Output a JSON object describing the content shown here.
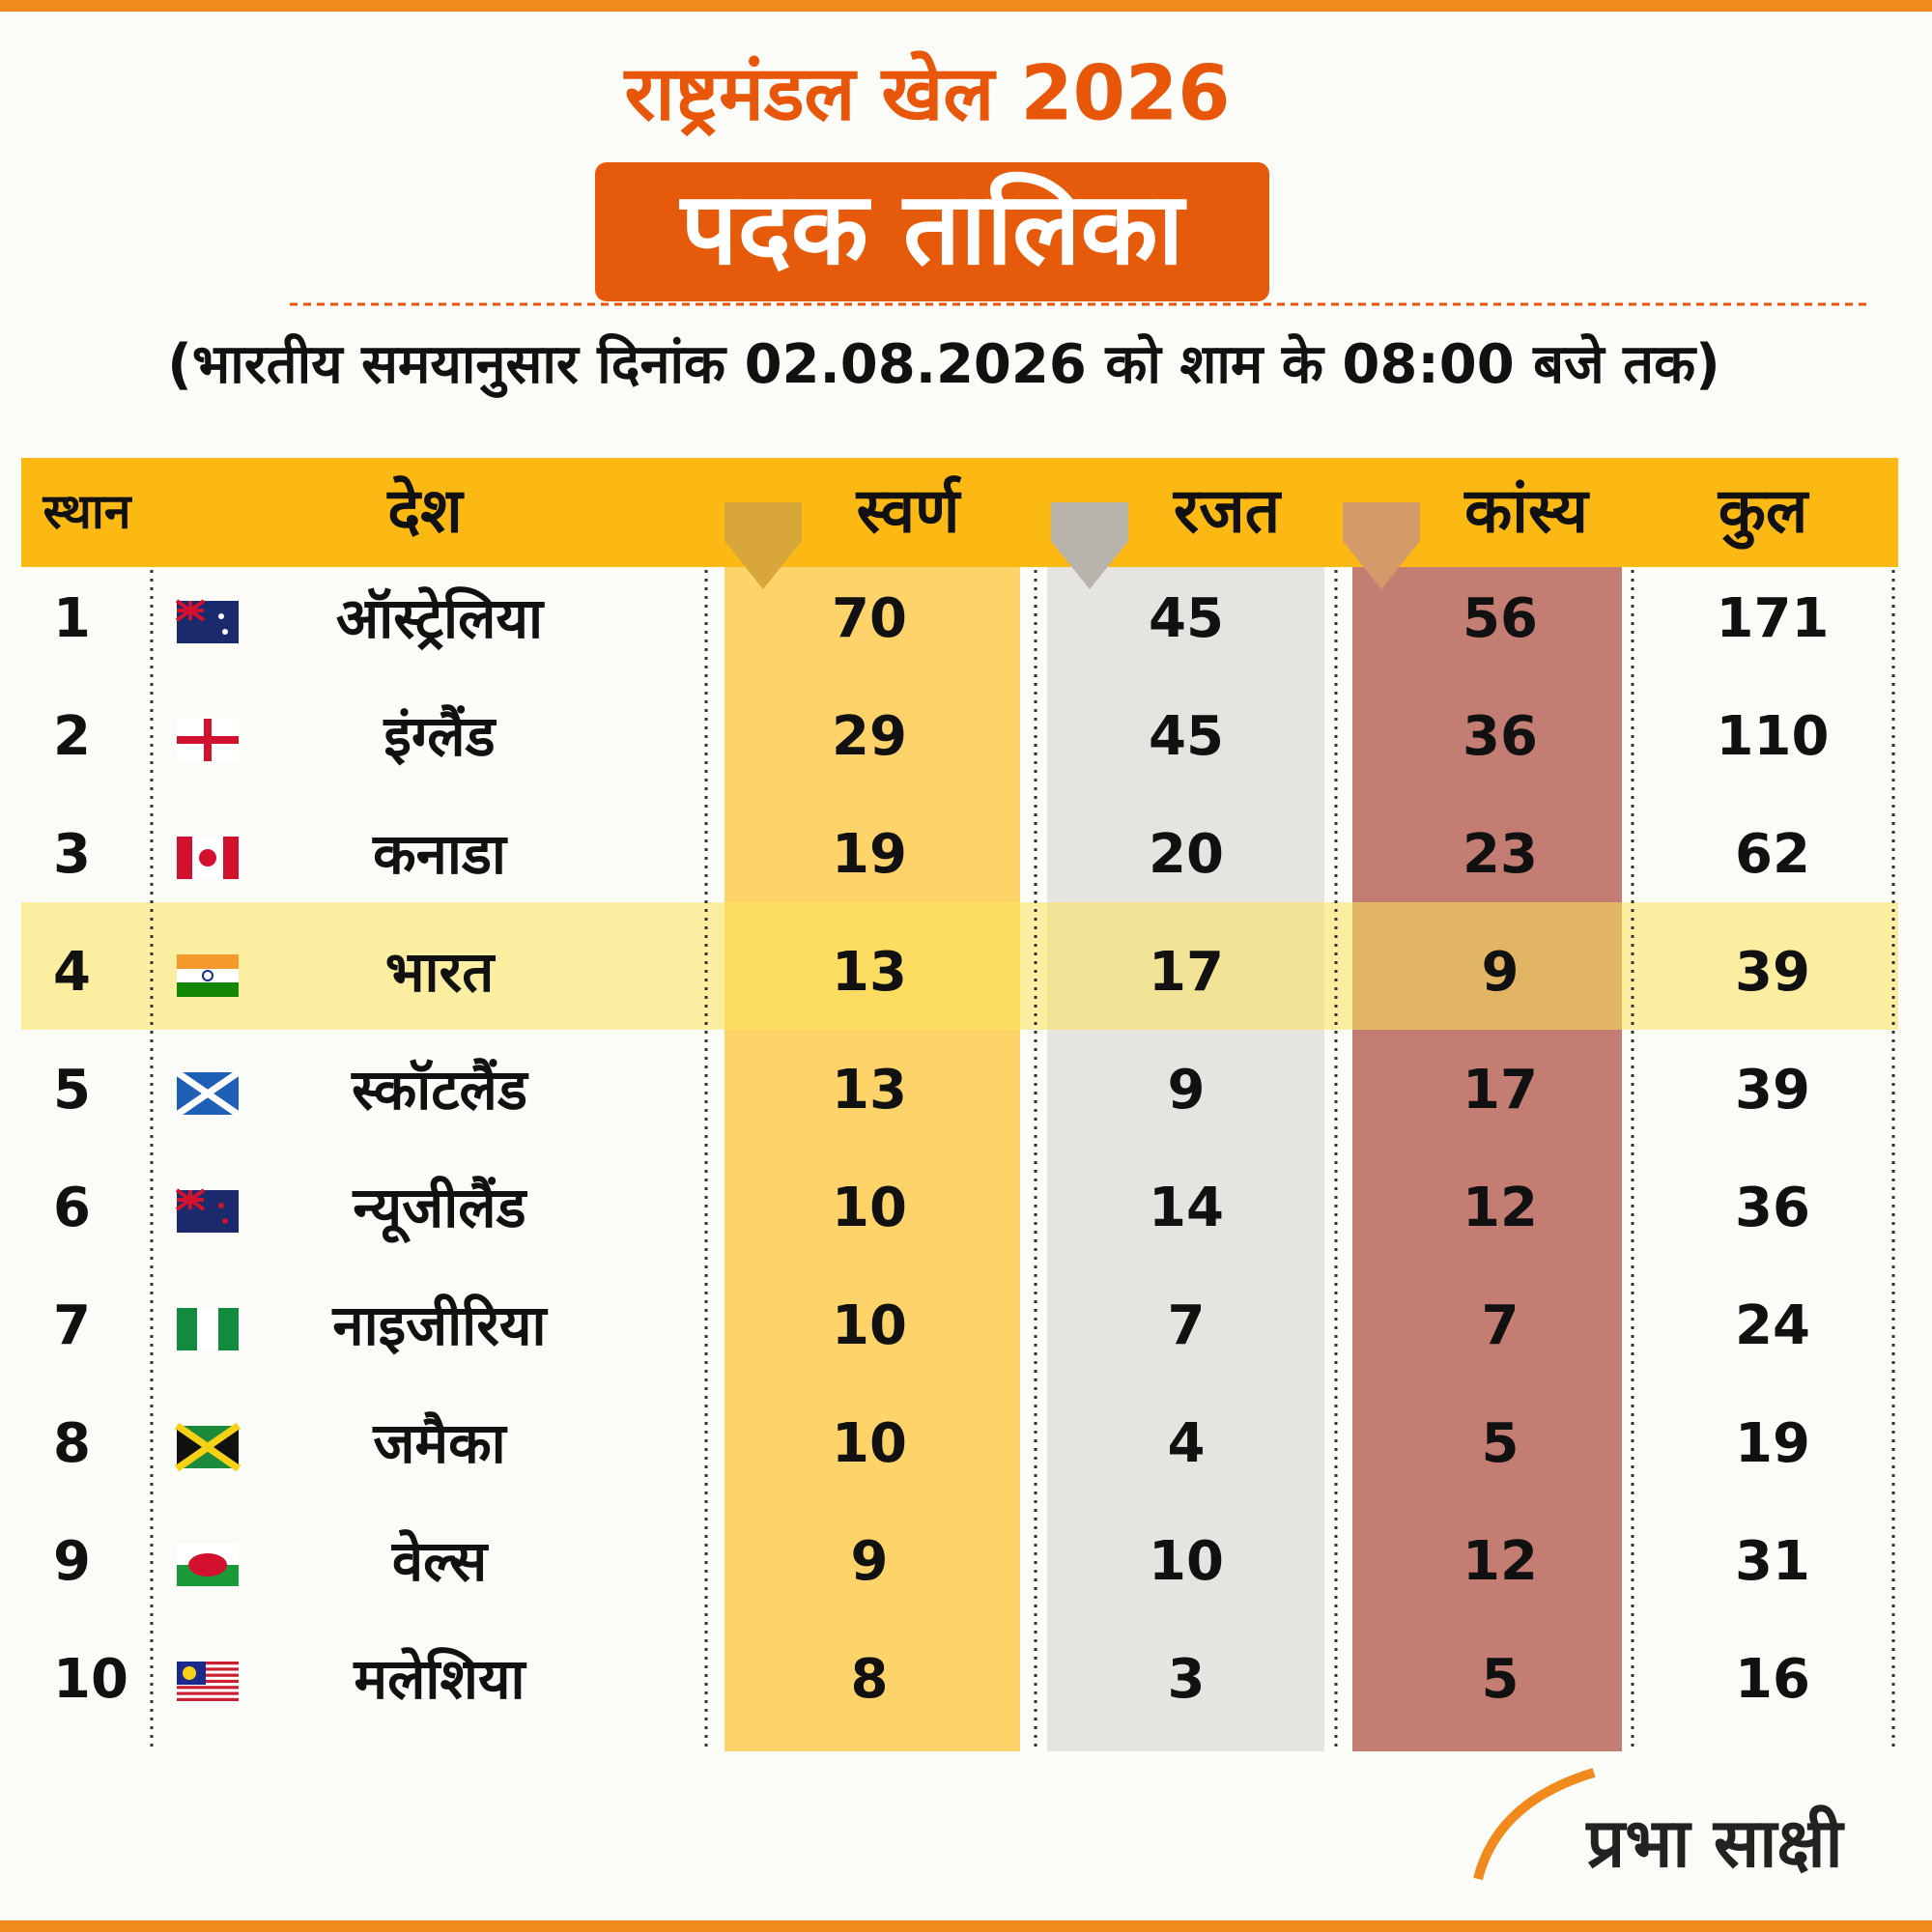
{
  "header": {
    "title": "राष्ट्रमंडल खेल 2026",
    "badge": "पदक तालिका",
    "note": "(भारतीय समयानुसार दिनांक 02.08.2026 को शाम के 08:00 बजे तक)"
  },
  "table": {
    "columns": [
      "स्थान",
      "देश",
      "स्वर्ण",
      "रजत",
      "कांस्य",
      "कुल"
    ],
    "rows": [
      [
        1,
        "ऑस्ट्रेलिया",
        70,
        45,
        56,
        171
      ],
      [
        2,
        "इंग्लैंड",
        29,
        45,
        36,
        110
      ],
      [
        3,
        "कनाडा",
        19,
        20,
        23,
        62
      ],
      [
        4,
        "भारत",
        13,
        17,
        9,
        39
      ],
      [
        5,
        "स्कॉटलैंड",
        13,
        9,
        17,
        39
      ],
      [
        6,
        "न्यूजीलैंड",
        10,
        14,
        12,
        36
      ],
      [
        7,
        "नाइजीरिया",
        10,
        7,
        7,
        24
      ],
      [
        8,
        "जमैका",
        10,
        4,
        5,
        19
      ],
      [
        9,
        "वेल्स",
        9,
        10,
        12,
        31
      ],
      [
        10,
        "मलेशिया",
        8,
        3,
        5,
        16
      ]
    ]
  },
  "logo": "प्रभा साक्षी"
}
